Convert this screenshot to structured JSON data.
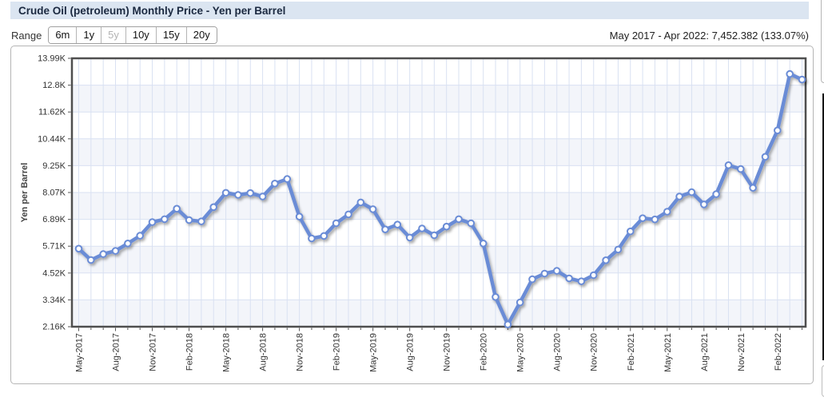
{
  "header": {
    "title": "Crude Oil (petroleum) Monthly Price - Yen per Barrel"
  },
  "range_selector": {
    "label": "Range",
    "options": [
      {
        "label": "6m",
        "state": "enabled"
      },
      {
        "label": "1y",
        "state": "enabled"
      },
      {
        "label": "5y",
        "state": "selected"
      },
      {
        "label": "10y",
        "state": "enabled"
      },
      {
        "label": "15y",
        "state": "enabled"
      },
      {
        "label": "20y",
        "state": "enabled"
      }
    ],
    "summary": "May 2017 - Apr 2022: 7,452.382 (133.07%)"
  },
  "colors": {
    "title_bar_bg": "#dbe5f1",
    "title_text": "#1b2940",
    "line": "#6b8cd6",
    "marker_fill": "#ffffff",
    "grid": "#d9e1f2",
    "band": "#f3f5fa",
    "plot_frame": "#4f4f4f",
    "axis_text": "#333333"
  },
  "chart_data": {
    "type": "line",
    "title": "Crude Oil (petroleum) Monthly Price - Yen per Barrel",
    "xlabel": "",
    "ylabel": "Yen per Barrel",
    "ylim": [
      2160,
      13990
    ],
    "y_ticks": [
      {
        "label": "13.99K",
        "value": 13990
      },
      {
        "label": "12.8K",
        "value": 12800
      },
      {
        "label": "11.62K",
        "value": 11620
      },
      {
        "label": "10.44K",
        "value": 10440
      },
      {
        "label": "9.25K",
        "value": 9250
      },
      {
        "label": "8.07K",
        "value": 8070
      },
      {
        "label": "6.89K",
        "value": 6890
      },
      {
        "label": "5.71K",
        "value": 5710
      },
      {
        "label": "4.52K",
        "value": 4520
      },
      {
        "label": "3.34K",
        "value": 3340
      },
      {
        "label": "2.16K",
        "value": 2160
      }
    ],
    "x_tick_every": 3,
    "grid": true,
    "legend": "none",
    "categories": [
      "May-2017",
      "Jun-2017",
      "Jul-2017",
      "Aug-2017",
      "Sep-2017",
      "Oct-2017",
      "Nov-2017",
      "Dec-2017",
      "Jan-2018",
      "Feb-2018",
      "Mar-2018",
      "Apr-2018",
      "May-2018",
      "Jun-2018",
      "Jul-2018",
      "Aug-2018",
      "Sep-2018",
      "Oct-2018",
      "Nov-2018",
      "Dec-2018",
      "Jan-2019",
      "Feb-2019",
      "Mar-2019",
      "Apr-2019",
      "May-2019",
      "Jun-2019",
      "Jul-2019",
      "Aug-2019",
      "Sep-2019",
      "Oct-2019",
      "Nov-2019",
      "Dec-2019",
      "Jan-2020",
      "Feb-2020",
      "Mar-2020",
      "Apr-2020",
      "May-2020",
      "Jun-2020",
      "Jul-2020",
      "Aug-2020",
      "Sep-2020",
      "Oct-2020",
      "Nov-2020",
      "Dec-2020",
      "Jan-2021",
      "Feb-2021",
      "Mar-2021",
      "Apr-2021",
      "May-2021",
      "Jun-2021",
      "Jul-2021",
      "Aug-2021",
      "Sep-2021",
      "Oct-2021",
      "Nov-2021",
      "Dec-2021",
      "Jan-2022",
      "Feb-2022",
      "Mar-2022",
      "Apr-2022"
    ],
    "series": [
      {
        "name": "Yen per Barrel",
        "values": [
          5600,
          5100,
          5360,
          5500,
          5830,
          6170,
          6770,
          6900,
          7360,
          6860,
          6800,
          7430,
          8060,
          7970,
          8050,
          7900,
          8470,
          8670,
          7010,
          6050,
          6160,
          6720,
          7110,
          7640,
          7340,
          6450,
          6660,
          6090,
          6490,
          6190,
          6570,
          6900,
          6720,
          5830,
          3470,
          2260,
          3230,
          4250,
          4500,
          4620,
          4290,
          4160,
          4430,
          5090,
          5560,
          6360,
          6940,
          6890,
          7230,
          7900,
          8090,
          7550,
          8000,
          9280,
          9110,
          8280,
          9650,
          10810,
          13300,
          13053
        ]
      }
    ]
  }
}
